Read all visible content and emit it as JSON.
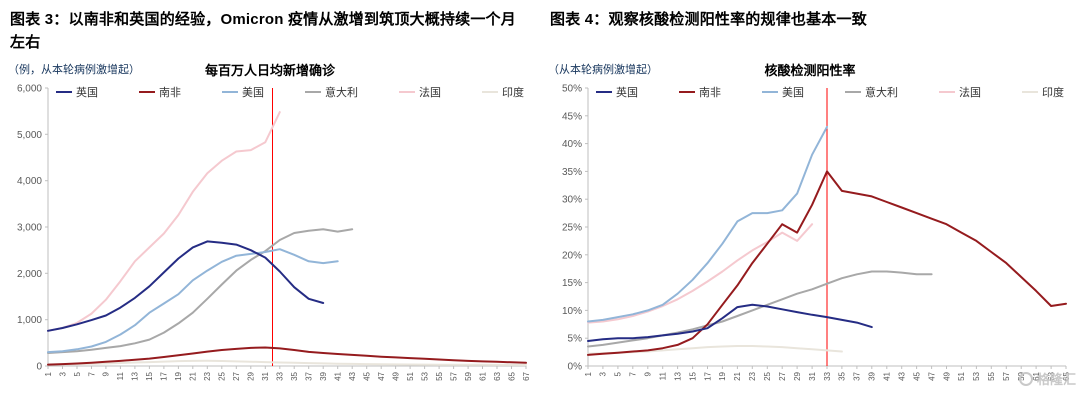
{
  "headers": {
    "fig3": "图表 3：以南非和英国的经验，Omicron 疫情从激增到筑顶大概持续一个月左右",
    "fig4": "图表 4：观察核酸检测阳性率的规律也基本一致"
  },
  "watermark": {
    "text": "格隆汇"
  },
  "chart_data": [
    {
      "type": "line",
      "title": "每百万人日均新增确诊",
      "unit_label": "（例，从本轮病例激增起）",
      "ylim": [
        0,
        6000
      ],
      "ytick_step": 1000,
      "ytick_format": "thousands",
      "xlim": [
        1,
        67
      ],
      "xtick_step": 2,
      "vline_x": 32,
      "vline_color": "#ff0000",
      "legend_position": "top",
      "grid": false,
      "series": [
        {
          "name": "英国",
          "color": "#252c84",
          "x_start": 1,
          "x_step": 2,
          "values": [
            760,
            820,
            900,
            990,
            1090,
            1260,
            1470,
            1720,
            2020,
            2320,
            2560,
            2690,
            2660,
            2620,
            2500,
            2340,
            2040,
            1700,
            1450,
            1360
          ]
        },
        {
          "name": "南非",
          "color": "#951b1e",
          "x_start": 1,
          "x_step": 2,
          "values": [
            30,
            40,
            55,
            70,
            90,
            110,
            135,
            160,
            195,
            230,
            270,
            310,
            345,
            370,
            390,
            400,
            380,
            345,
            305,
            280,
            260,
            240,
            220,
            200,
            185,
            170,
            155,
            140,
            125,
            110,
            100,
            90,
            80,
            70
          ]
        },
        {
          "name": "美国",
          "color": "#92b5d8",
          "x_start": 1,
          "x_step": 2,
          "values": [
            300,
            320,
            360,
            420,
            520,
            680,
            880,
            1150,
            1350,
            1550,
            1850,
            2060,
            2250,
            2380,
            2420,
            2460,
            2520,
            2400,
            2260,
            2220,
            2260
          ]
        },
        {
          "name": "意大利",
          "color": "#a8a8a8",
          "x_start": 1,
          "x_step": 2,
          "values": [
            280,
            300,
            320,
            350,
            390,
            430,
            490,
            570,
            720,
            920,
            1150,
            1450,
            1760,
            2060,
            2290,
            2480,
            2720,
            2870,
            2920,
            2950,
            2900,
            2950
          ]
        },
        {
          "name": "法国",
          "color": "#f5c9cf",
          "x_start": 1,
          "x_step": 2,
          "values": [
            760,
            820,
            930,
            1130,
            1430,
            1830,
            2260,
            2560,
            2860,
            3260,
            3760,
            4160,
            4430,
            4630,
            4660,
            4830,
            5480
          ]
        },
        {
          "name": "印度",
          "color": "#e9e5dc",
          "x_start": 1,
          "x_step": 2,
          "values": [
            30,
            35,
            40,
            48,
            55,
            65,
            75,
            85,
            95,
            105,
            110,
            112,
            108,
            100,
            92,
            84,
            76,
            68,
            62,
            56,
            50,
            46,
            42,
            38,
            35,
            33,
            31,
            29,
            27,
            26,
            25,
            24,
            23,
            22
          ]
        }
      ]
    },
    {
      "type": "line",
      "title": "核酸检测阳性率",
      "unit_label": "（从本轮病例激增起）",
      "ylim": [
        0,
        50
      ],
      "ytick_step": 5,
      "ytick_format": "percent",
      "xlim": [
        1,
        65
      ],
      "xtick_step": 2,
      "vline_x": 33,
      "vline_color": "#ff0000",
      "legend_position": "top",
      "grid": false,
      "series": [
        {
          "name": "英国",
          "color": "#252c84",
          "x_start": 1,
          "x_step": 2,
          "values": [
            4.5,
            4.8,
            5.0,
            5.0,
            5.2,
            5.5,
            5.8,
            6.2,
            6.8,
            8.6,
            10.6,
            11.0,
            10.7,
            10.2,
            9.7,
            9.2,
            8.8,
            8.3,
            7.8,
            7.0
          ]
        },
        {
          "name": "南非",
          "color": "#951b1e",
          "x_start": 1,
          "x_step": 2,
          "values": [
            2.0,
            2.2,
            2.4,
            2.6,
            2.8,
            3.2,
            3.8,
            5.0,
            7.5,
            11.0,
            14.5,
            18.5,
            22.0,
            25.5,
            24.0,
            29.0,
            35.0,
            31.5,
            31.0,
            30.5,
            29.5,
            28.5,
            27.5,
            26.5,
            25.5,
            24.0,
            22.5,
            20.5,
            18.5,
            16.0,
            13.5,
            10.8,
            11.2
          ]
        },
        {
          "name": "美国",
          "color": "#92b5d8",
          "x_start": 1,
          "x_step": 2,
          "values": [
            8.0,
            8.3,
            8.8,
            9.3,
            10.0,
            11.0,
            13.0,
            15.5,
            18.5,
            22.0,
            26.0,
            27.5,
            27.5,
            28.0,
            31.0,
            38.0,
            43.0
          ]
        },
        {
          "name": "意大利",
          "color": "#a8a8a8",
          "x_start": 1,
          "x_step": 2,
          "values": [
            3.5,
            3.8,
            4.2,
            4.6,
            5.0,
            5.5,
            6.0,
            6.6,
            7.3,
            8.0,
            9.0,
            10.0,
            11.0,
            12.0,
            13.0,
            13.8,
            14.8,
            15.8,
            16.5,
            17.0,
            17.0,
            16.8,
            16.5,
            16.5
          ]
        },
        {
          "name": "法国",
          "color": "#f5c9cf",
          "x_start": 1,
          "x_step": 2,
          "values": [
            7.8,
            8.0,
            8.4,
            9.0,
            9.8,
            10.8,
            12.0,
            13.5,
            15.2,
            17.0,
            19.0,
            20.8,
            22.3,
            24.0,
            22.5,
            25.5
          ]
        },
        {
          "name": "印度",
          "color": "#e9e5dc",
          "x_start": 1,
          "x_step": 2,
          "values": [
            2.2,
            2.3,
            2.4,
            2.5,
            2.6,
            2.8,
            3.0,
            3.2,
            3.4,
            3.5,
            3.6,
            3.6,
            3.5,
            3.4,
            3.2,
            3.0,
            2.8,
            2.6
          ]
        }
      ]
    }
  ]
}
